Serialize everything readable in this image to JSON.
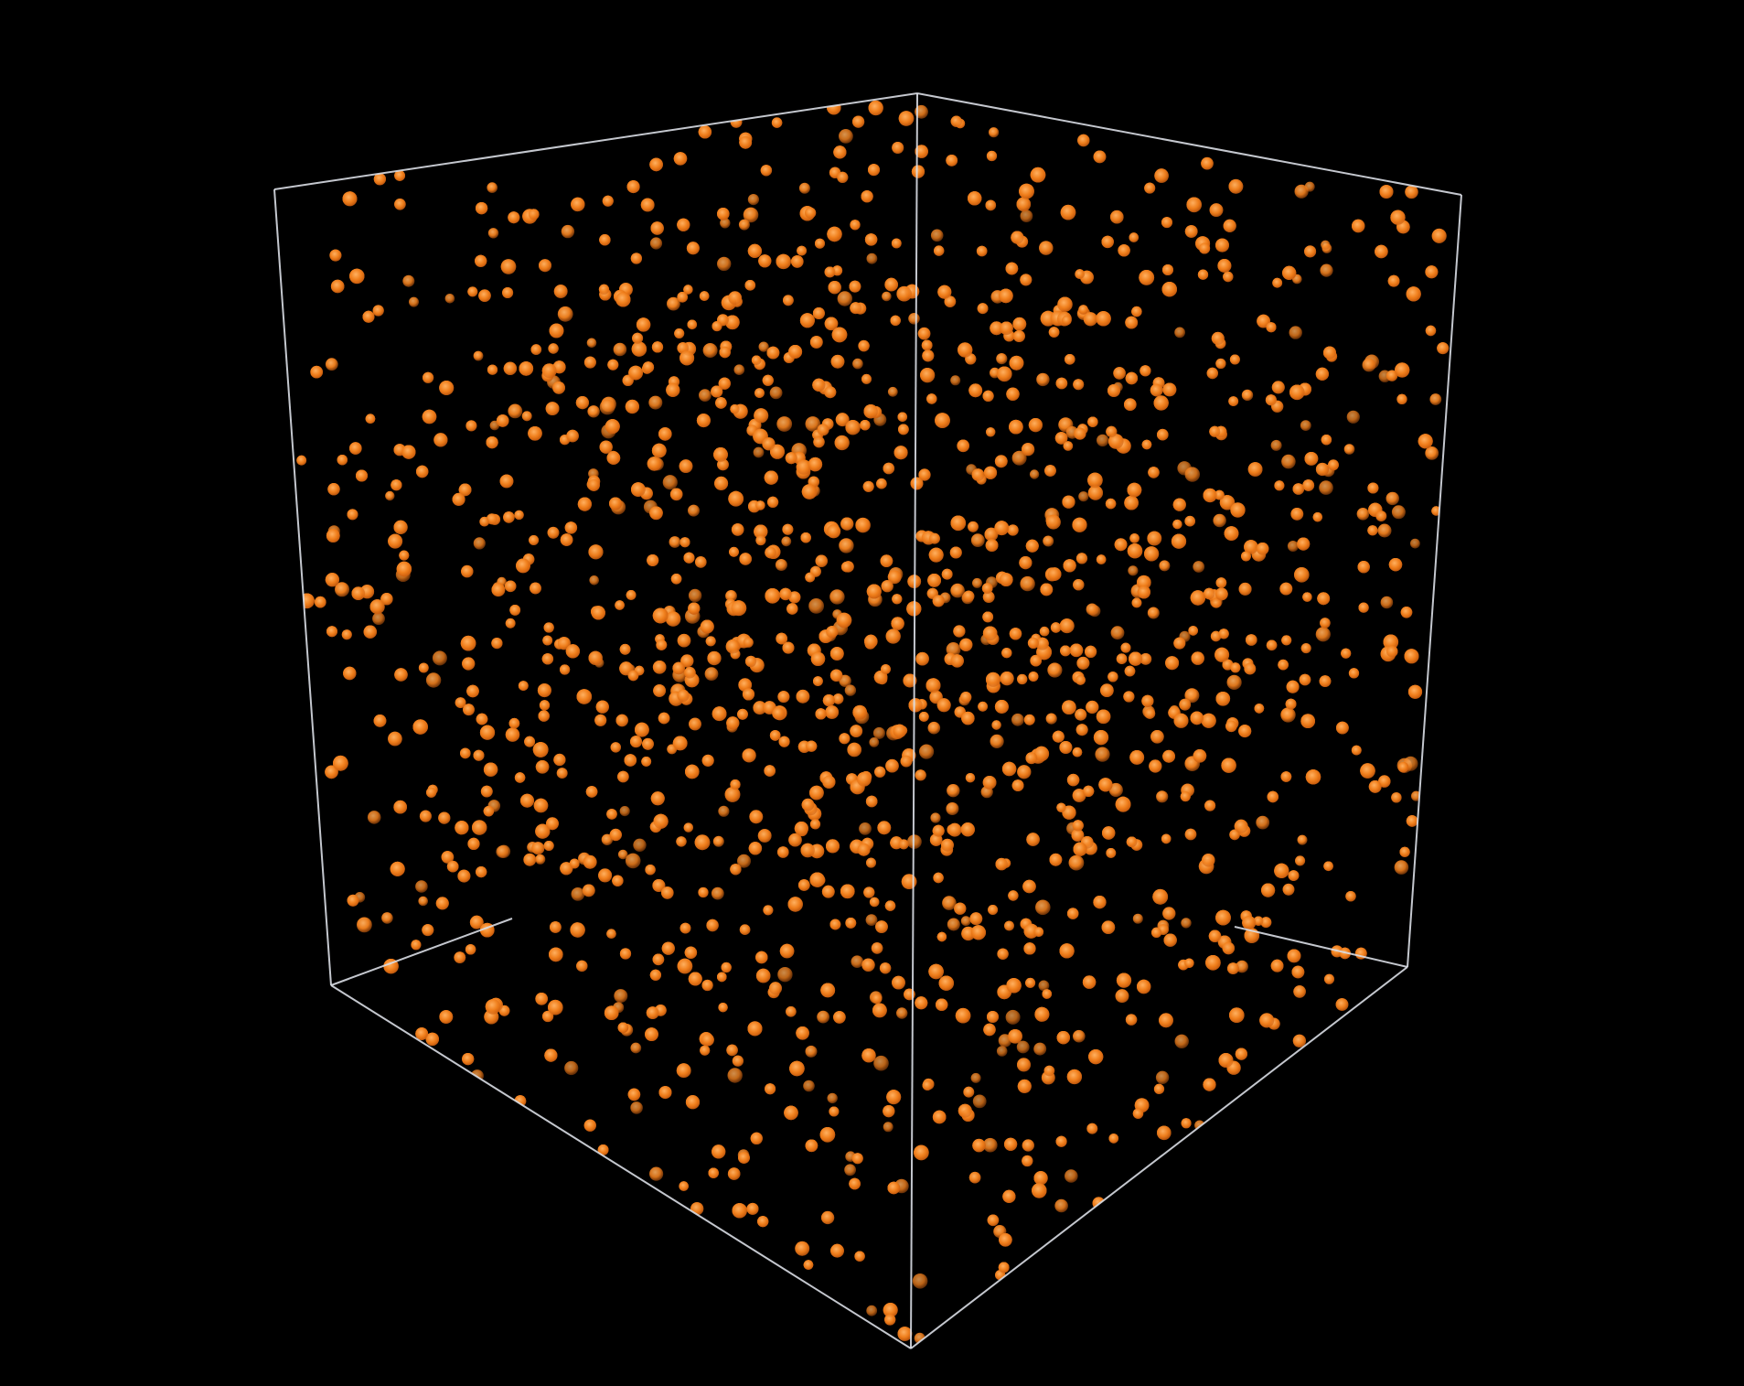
{
  "scene": {
    "background_color": "#000000",
    "subject": "particle-cloud-in-cube",
    "box": {
      "edge_color": "#d9dde4",
      "visible_edges": 9
    },
    "particles": {
      "color": "#f07f1c",
      "highlight_color": "#ffb060",
      "glow_color": "#c85a0c",
      "distribution": "dense-center-sparse-corners"
    }
  }
}
